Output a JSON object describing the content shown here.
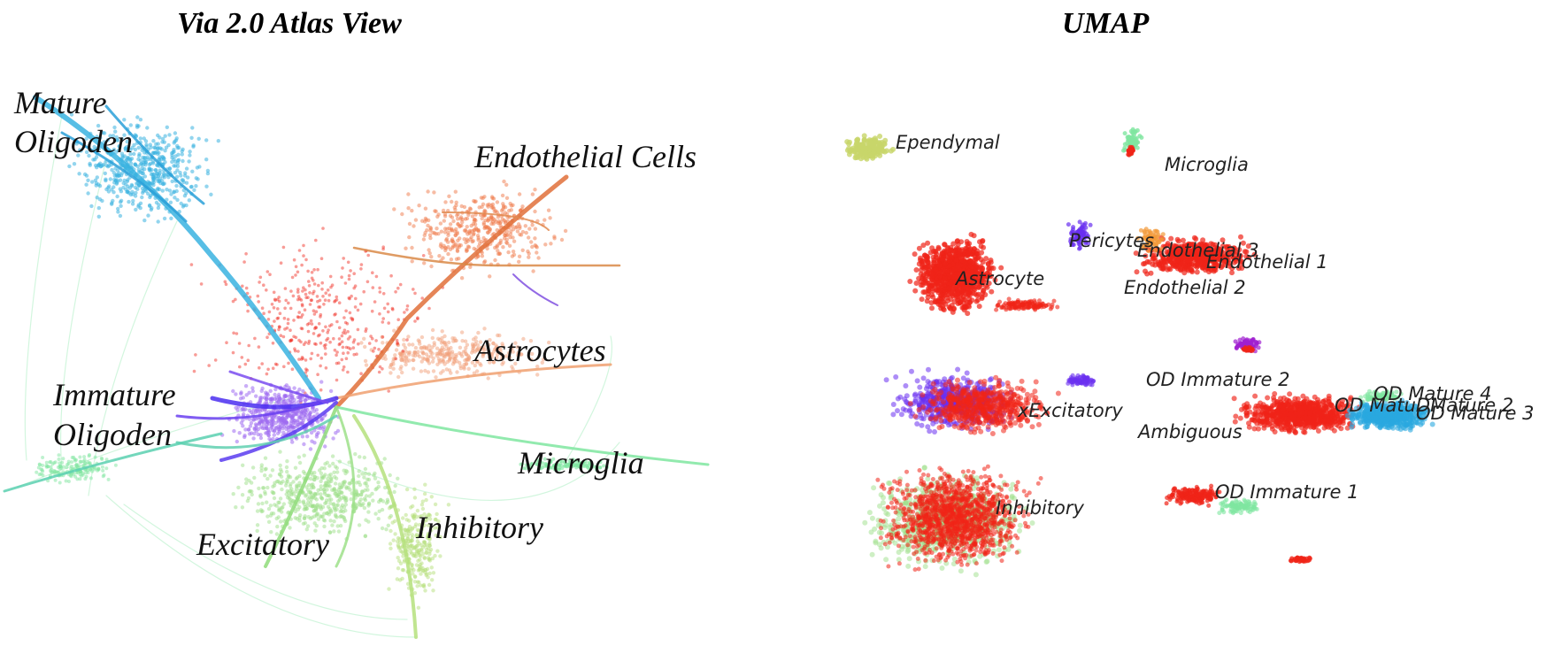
{
  "atlas": {
    "title": "Via 2.0 Atlas View",
    "labels": {
      "mature_line1": "Mature",
      "mature_line2": "Oligoden",
      "endothelial": "Endothelial Cells",
      "astrocytes": "Astrocytes",
      "immature_line1": "Immature",
      "immature_line2": "Oligoden",
      "microglia": "Microglia",
      "excitatory": "Excitatory",
      "inhibitory": "Inhibitory"
    }
  },
  "umap": {
    "title": "UMAP",
    "labels": {
      "ependymal": "Ependymal",
      "microglia": "Microglia",
      "pericytes": "Pericytes",
      "endothelial3": "Endothelial 3",
      "endothelial1": "Endothelial 1",
      "astrocyte": "Astrocyte",
      "endothelial2": "Endothelial 2",
      "od_immature2": "OD Immature 2",
      "od_mature4": "OD Mature 4",
      "od_mature_overlap": "OD MatuDMature 2",
      "od_mature3": "OD Mature 3",
      "xexcitatory": "xExcitatory",
      "ambiguous": "Ambiguous",
      "od_immature1": "OD Immature 1",
      "inhibitory": "Inhibitory"
    }
  },
  "colors": {
    "mature_oligo": "#3ab3e0",
    "immature_oligo": "#5b3cf0",
    "endothelial": "#f07a4a",
    "astrocyte": "#f2a07a",
    "microglia": "#7fe6a0",
    "excitatory": "#9ee08a",
    "inhibitory": "#b5e07c",
    "red": "#f02418",
    "ependymal": "#c8d66a",
    "pericytes": "#6a30f0",
    "umap_mature": "#2aa8e0"
  }
}
